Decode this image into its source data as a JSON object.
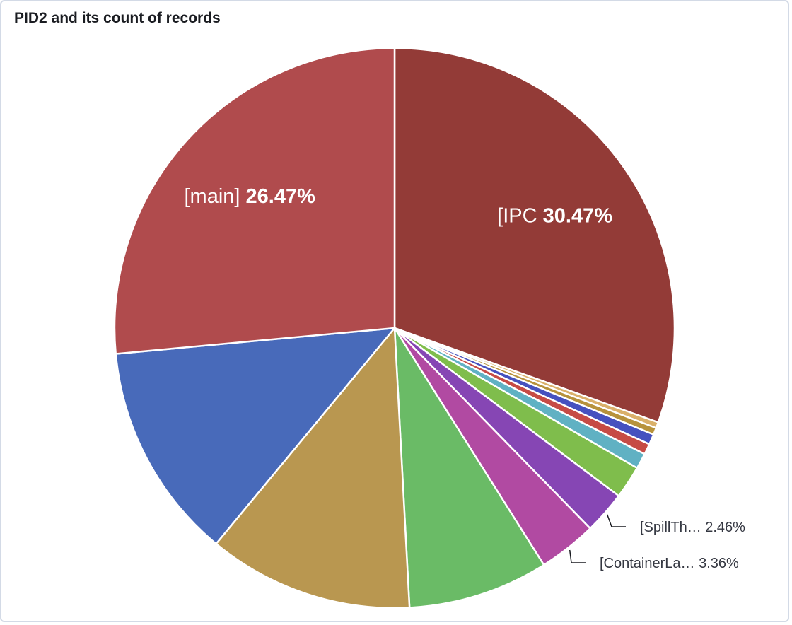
{
  "panel": {
    "title": "PID2 and its count of records"
  },
  "chart_data": {
    "type": "pie",
    "title": "PID2 and its count of records",
    "slices": [
      {
        "label": "[IPC",
        "percent": 30.47,
        "color": "#933b37",
        "label_placement": "inside"
      },
      {
        "label": "",
        "percent": 0.34,
        "color": "#dab06a"
      },
      {
        "label": "",
        "percent": 0.4,
        "color": "#b7923c"
      },
      {
        "label": "",
        "percent": 0.6,
        "color": "#4651bf"
      },
      {
        "label": "",
        "percent": 0.62,
        "color": "#c64b45"
      },
      {
        "label": "",
        "percent": 0.9,
        "color": "#60b1c3"
      },
      {
        "label": "",
        "percent": 1.9,
        "color": "#7fbd4c"
      },
      {
        "label": "[SpillTh…",
        "percent": 2.46,
        "percent_text": "2.46%",
        "color": "#8646b4",
        "label_placement": "outside"
      },
      {
        "label": "[ContainerLa…",
        "percent": 3.36,
        "percent_text": "3.36%",
        "color": "#b14aa2",
        "label_placement": "outside"
      },
      {
        "label": "",
        "percent": 8.1,
        "color": "#6abb66"
      },
      {
        "label": "",
        "percent": 11.85,
        "color": "#b99750"
      },
      {
        "label": "",
        "percent": 12.53,
        "color": "#486aba"
      },
      {
        "label": "[main]",
        "percent": 26.47,
        "color": "#b04b4d",
        "label_placement": "inside"
      }
    ],
    "legend": "none",
    "grid": false
  }
}
